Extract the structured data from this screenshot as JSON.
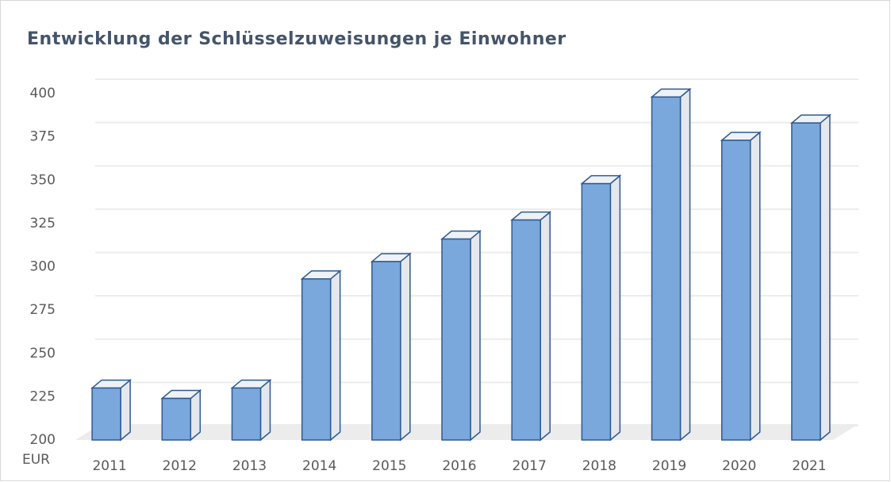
{
  "chart_data": {
    "type": "bar3d",
    "title": "Entwicklung der Schlüsselzuweisungen je Einwohner",
    "y_label": "EUR",
    "categories": [
      "2011",
      "2012",
      "2013",
      "2014",
      "2015",
      "2016",
      "2017",
      "2018",
      "2019",
      "2020",
      "2021"
    ],
    "values": [
      230,
      224,
      230,
      293,
      303,
      316,
      327,
      348,
      398,
      373,
      383
    ],
    "color": "#7aa7dc",
    "ylim": [
      200,
      400
    ],
    "yticks": [
      200,
      225,
      250,
      275,
      300,
      325,
      350,
      375,
      400
    ],
    "grid": true
  }
}
